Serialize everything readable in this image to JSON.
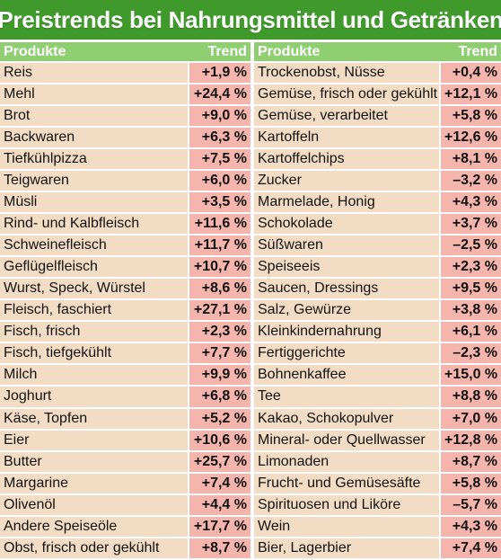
{
  "title": "Preistrends bei Nahrungsmittel und Getränken",
  "header": {
    "product": "Produkte",
    "trend": "Trend"
  },
  "colors": {
    "title_bg": "#3f9a2b",
    "header_bg": "#8fcf72",
    "product_bg": "#f2ddc4",
    "trend_bg": "#f5b5ac"
  },
  "left": [
    {
      "product": "Reis",
      "trend": "+1,9 %"
    },
    {
      "product": "Mehl",
      "trend": "+24,4 %"
    },
    {
      "product": "Brot",
      "trend": "+9,0 %"
    },
    {
      "product": "Backwaren",
      "trend": "+6,3 %"
    },
    {
      "product": "Tiefkühlpizza",
      "trend": "+7,5 %"
    },
    {
      "product": "Teigwaren",
      "trend": "+6,0 %"
    },
    {
      "product": "Müsli",
      "trend": "+3,5 %"
    },
    {
      "product": "Rind- und Kalbfleisch",
      "trend": "+11,6 %"
    },
    {
      "product": "Schweinefleisch",
      "trend": "+11,7 %"
    },
    {
      "product": "Geflügelfleisch",
      "trend": "+10,7 %"
    },
    {
      "product": "Wurst, Speck, Würstel",
      "trend": "+8,6 %"
    },
    {
      "product": "Fleisch, faschiert",
      "trend": "+27,1 %"
    },
    {
      "product": "Fisch, frisch",
      "trend": "+2,3 %"
    },
    {
      "product": "Fisch, tiefgekühlt",
      "trend": "+7,7 %"
    },
    {
      "product": "Milch",
      "trend": "+9,9 %"
    },
    {
      "product": "Joghurt",
      "trend": "+6,8 %"
    },
    {
      "product": "Käse, Topfen",
      "trend": "+5,2 %"
    },
    {
      "product": "Eier",
      "trend": "+10,6 %"
    },
    {
      "product": "Butter",
      "trend": "+25,7 %"
    },
    {
      "product": "Margarine",
      "trend": "+7,4 %"
    },
    {
      "product": "Olivenöl",
      "trend": "+4,4 %"
    },
    {
      "product": "Andere Speiseöle",
      "trend": "+17,7 %"
    },
    {
      "product": "Obst, frisch oder gekühlt",
      "trend": "+8,7 %"
    }
  ],
  "right": [
    {
      "product": "Trockenobst, Nüsse",
      "trend": "+0,4 %"
    },
    {
      "product": "Gemüse, frisch oder gekühlt",
      "trend": "+12,1 %"
    },
    {
      "product": "Gemüse, verarbeitet",
      "trend": "+5,8 %"
    },
    {
      "product": "Kartoffeln",
      "trend": "+12,6 %"
    },
    {
      "product": "Kartoffelchips",
      "trend": "+8,1 %"
    },
    {
      "product": "Zucker",
      "trend": "–3,2 %"
    },
    {
      "product": "Marmelade, Honig",
      "trend": "+4,3 %"
    },
    {
      "product": "Schokolade",
      "trend": "+3,7 %"
    },
    {
      "product": "Süßwaren",
      "trend": "–2,5 %"
    },
    {
      "product": "Speiseeis",
      "trend": "+2,3 %"
    },
    {
      "product": "Saucen, Dressings",
      "trend": "+9,5 %"
    },
    {
      "product": "Salz, Gewürze",
      "trend": "+3,8 %"
    },
    {
      "product": "Kleinkindernahrung",
      "trend": "+6,1 %"
    },
    {
      "product": "Fertiggerichte",
      "trend": "–2,3 %"
    },
    {
      "product": "Bohnenkaffee",
      "trend": "+15,0 %"
    },
    {
      "product": "Tee",
      "trend": "+8,8 %"
    },
    {
      "product": "Kakao, Schokopulver",
      "trend": "+7,0 %"
    },
    {
      "product": "Mineral- oder Quellwasser",
      "trend": "+12,8 %"
    },
    {
      "product": "Limonaden",
      "trend": "+8,7 %"
    },
    {
      "product": "Frucht- und Gemüsesäfte",
      "trend": "+5,8 %"
    },
    {
      "product": "Spirituosen und Liköre",
      "trend": "–5,7 %"
    },
    {
      "product": "Wein",
      "trend": "+4,3 %"
    },
    {
      "product": "Bier, Lagerbier",
      "trend": "+7,4 %"
    }
  ]
}
